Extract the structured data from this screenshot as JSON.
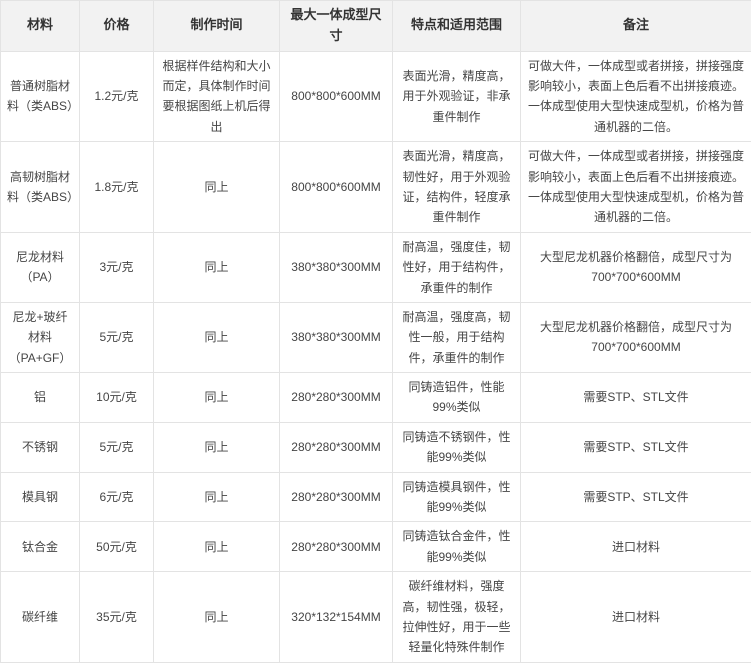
{
  "table": {
    "columns": [
      "材料",
      "价格",
      "制作时间",
      "最大一体成型尺寸",
      "特点和适用范围",
      "备注"
    ],
    "rows": [
      {
        "cells": [
          "普通树脂材料（类ABS）",
          "1.2元/克",
          "根据样件结构和大小而定，具体制作时间要根据图纸上机后得出",
          "800*800*600MM",
          "表面光滑，精度高，用于外观验证，非承重件制作",
          "可做大件，一体成型或者拼接，拼接强度影响较小，表面上色后看不出拼接痕迹。一体成型使用大型快速成型机，价格为普通机器的二倍。"
        ]
      },
      {
        "cells": [
          "高韧树脂材料（类ABS）",
          "1.8元/克",
          "同上",
          "800*800*600MM",
          "表面光滑，精度高，韧性好，用于外观验证，结构件，轻度承重件制作",
          "可做大件，一体成型或者拼接，拼接强度影响较小，表面上色后看不出拼接痕迹。一体成型使用大型快速成型机，价格为普通机器的二倍。"
        ]
      },
      {
        "cells": [
          "尼龙材料（PA）",
          "3元/克",
          "同上",
          "380*380*300MM",
          "耐高温，强度佳，韧性好，用于结构件，承重件的制作",
          "大型尼龙机器价格翻倍，成型尺寸为700*700*600MM"
        ]
      },
      {
        "cells": [
          "尼龙+玻纤材料（PA+GF）",
          "5元/克",
          "同上",
          "380*380*300MM",
          "耐高温，强度高，韧性一般，用于结构件，承重件的制作",
          "大型尼龙机器价格翻倍，成型尺寸为700*700*600MM"
        ]
      },
      {
        "cells": [
          "铝",
          "10元/克",
          "同上",
          "280*280*300MM",
          "同铸造铝件，性能99%类似",
          "需要STP、STL文件"
        ]
      },
      {
        "cells": [
          "不锈钢",
          "5元/克",
          "同上",
          "280*280*300MM",
          "同铸造不锈钢件，性能99%类似",
          "需要STP、STL文件"
        ]
      },
      {
        "cells": [
          "模具钢",
          "6元/克",
          "同上",
          "280*280*300MM",
          "同铸造模具钢件，性能99%类似",
          "需要STP、STL文件"
        ]
      },
      {
        "cells": [
          "钛合金",
          "50元/克",
          "同上",
          "280*280*300MM",
          "同铸造钛合金件，性能99%类似",
          "进口材料"
        ]
      },
      {
        "cells": [
          "碳纤维",
          "35元/克",
          "同上",
          "320*132*154MM",
          "碳纤维材料，强度高，韧性强，极轻，拉伸性好，用于一些轻量化特殊件制作",
          "进口材料"
        ]
      }
    ]
  },
  "colors": {
    "header_bg": "#f2f2f2",
    "border": "#e3e3e3",
    "header_text": "#333333",
    "body_text": "#454545",
    "row_bg": "#ffffff"
  }
}
